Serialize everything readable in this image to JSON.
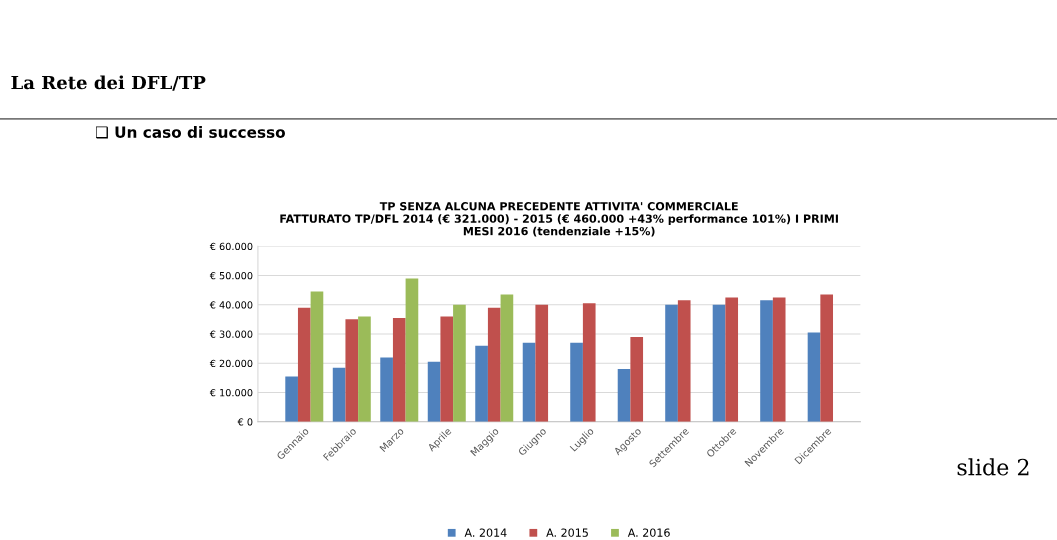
{
  "chart_data": {
    "type": "bar",
    "title": "TP SENZA ALCUNA PRECEDENTE ATTIVITA' COMMERCIALE\nFATTURATO TP/DFL 2014 (€ 321.000) - 2015 (€ 460.000 +43% performance 101%) I PRIMI\nMESI 2016 (tendenziale +15%)",
    "annotations": [
      "La Rete dei DFL/TP",
      "❑ Un caso di successo",
      "slide 2"
    ],
    "categories": [
      "Gennaio",
      "Febbraio",
      "Marzo",
      "Aprile",
      "Maggio",
      "Giugno",
      "Luglio",
      "Agosto",
      "Settembre",
      "Ottobre",
      "Novembre",
      "Dicembre"
    ],
    "series": [
      {
        "name": "A. 2014",
        "color": "#4f81bd",
        "values": [
          15500,
          18500,
          22000,
          20500,
          26000,
          27000,
          27000,
          18000,
          40000,
          40000,
          41500,
          30500
        ]
      },
      {
        "name": "A. 2015",
        "color": "#c0504d",
        "values": [
          39000,
          35000,
          35500,
          36000,
          39000,
          40000,
          40500,
          29000,
          41500,
          42500,
          42500,
          43500
        ]
      },
      {
        "name": "A. 2016",
        "color": "#9bbb59",
        "values": [
          44500,
          36000,
          49000,
          40000,
          43500,
          null,
          null,
          null,
          null,
          null,
          null,
          null
        ]
      }
    ],
    "ylim": [
      0,
      60000
    ],
    "yticks": [
      {
        "value": 0,
        "label": "€ 0"
      },
      {
        "value": 10000,
        "label": "€ 10.000"
      },
      {
        "value": 20000,
        "label": "€ 20.000"
      },
      {
        "value": 30000,
        "label": "€ 30.000"
      },
      {
        "value": 40000,
        "label": "€ 40.000"
      },
      {
        "value": 50000,
        "label": "€ 50.000"
      },
      {
        "value": 60000,
        "label": "€ 60.000"
      }
    ],
    "grid": "y",
    "legend": "bottom"
  }
}
